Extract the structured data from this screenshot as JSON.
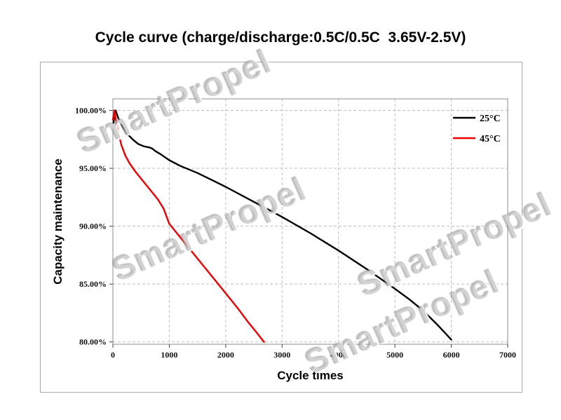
{
  "page": {
    "title": "Cycle curve (charge/discharge:0.5C/0.5C  3.65V-2.5V)"
  },
  "watermark": {
    "text": "SmartPropel"
  },
  "chart_data": {
    "type": "line",
    "title": "Cycle curve (charge/discharge:0.5C/0.5C  3.65V-2.5V)",
    "xlabel": "Cycle times",
    "ylabel": "Capacity maintenance",
    "xlim": [
      0,
      7000
    ],
    "ylim": [
      79.8,
      101
    ],
    "xticks": [
      0,
      1000,
      2000,
      3000,
      4000,
      5000,
      6000,
      7000
    ],
    "ytick_values": [
      100,
      95,
      90,
      85,
      80
    ],
    "yticks": [
      "100.00%",
      "95.00%",
      "90.00%",
      "85.00%",
      "80.00%"
    ],
    "grid": true,
    "legend_position": "top-right",
    "series": [
      {
        "name": "25°C",
        "color": "#000000",
        "points": [
          [
            0,
            98.6
          ],
          [
            30,
            99.6
          ],
          [
            50,
            100
          ],
          [
            70,
            99.7
          ],
          [
            90,
            99.4
          ],
          [
            110,
            99.2
          ],
          [
            140,
            98.9
          ],
          [
            180,
            98.5
          ],
          [
            250,
            98.0
          ],
          [
            350,
            97.5
          ],
          [
            450,
            97.1
          ],
          [
            550,
            96.9
          ],
          [
            650,
            96.8
          ],
          [
            700,
            96.7
          ],
          [
            750,
            96.5
          ],
          [
            850,
            96.2
          ],
          [
            1000,
            95.7
          ],
          [
            1200,
            95.2
          ],
          [
            1500,
            94.6
          ],
          [
            1750,
            94.0
          ],
          [
            2000,
            93.4
          ],
          [
            2500,
            92.1
          ],
          [
            3000,
            90.8
          ],
          [
            3500,
            89.4
          ],
          [
            4000,
            87.9
          ],
          [
            4500,
            86.3
          ],
          [
            5000,
            84.6
          ],
          [
            5250,
            83.7
          ],
          [
            5500,
            82.7
          ],
          [
            5750,
            81.5
          ],
          [
            6000,
            80.2
          ]
        ]
      },
      {
        "name": "45°C",
        "color": "#ee0000",
        "points": [
          [
            0,
            99.2
          ],
          [
            25,
            100
          ],
          [
            60,
            99.0
          ],
          [
            100,
            98.0
          ],
          [
            150,
            97.0
          ],
          [
            220,
            96.1
          ],
          [
            300,
            95.4
          ],
          [
            400,
            94.7
          ],
          [
            500,
            94.1
          ],
          [
            650,
            93.2
          ],
          [
            800,
            92.3
          ],
          [
            900,
            91.5
          ],
          [
            1000,
            90.2
          ],
          [
            1200,
            89.0
          ],
          [
            1400,
            87.8
          ],
          [
            1600,
            86.6
          ],
          [
            1800,
            85.4
          ],
          [
            2000,
            84.2
          ],
          [
            2200,
            83.0
          ],
          [
            2400,
            81.7
          ],
          [
            2550,
            80.8
          ],
          [
            2680,
            80.0
          ]
        ]
      }
    ]
  }
}
